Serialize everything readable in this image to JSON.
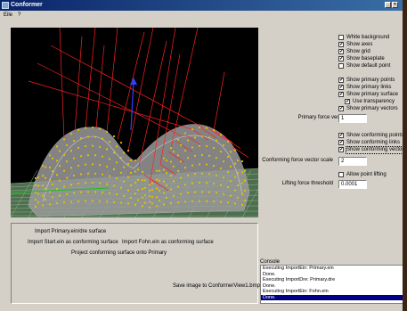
{
  "window": {
    "title": "Conformer"
  },
  "menu": {
    "items": [
      "Eile",
      "?"
    ]
  },
  "options": {
    "checkboxes": [
      {
        "label": "White background",
        "checked": false
      },
      {
        "label": "Show axes",
        "checked": true
      },
      {
        "label": "Show grid",
        "checked": true
      },
      {
        "label": "Show baseplate",
        "checked": true
      },
      {
        "label": "Show default point",
        "checked": false
      },
      {
        "label": "Show primary points",
        "checked": true
      },
      {
        "label": "Show primary links",
        "checked": true
      },
      {
        "label": "Show primary surface",
        "checked": true
      },
      {
        "label": "Use transparency",
        "checked": true
      },
      {
        "label": "Show primary vectors",
        "checked": true
      },
      {
        "label": "Show conforming points",
        "checked": true
      },
      {
        "label": "Show conforming links",
        "checked": true
      },
      {
        "label": "Show conforming vectors",
        "checked": true
      },
      {
        "label": "Allow point lifting",
        "checked": false
      }
    ],
    "primary_force_label": "Primary force vector scale",
    "primary_force_value": "1",
    "conforming_force_label": "Conforming force vector scale",
    "conforming_force_value": "2",
    "lifting_force_label": "Lifting force threshold",
    "lifting_force_value": "0.0001"
  },
  "commands": {
    "import_primary": "Import Primary.ein/dre surface",
    "import_start": "Import Start.ein as conforming surface",
    "import_fohn": "Import Fohn.ein as conforming surface",
    "project": "Project conforming surface onto Primary",
    "save_image": "Save image to ConformerView1.bmp"
  },
  "console": {
    "label": "Console",
    "lines": [
      "Executing ImportEin: Primary.ein",
      "Done.",
      "Executing ImportDre: Primary.dre",
      "Done.",
      "Executing ImportEin: Fohn.ein",
      "Done."
    ]
  },
  "colors": {
    "titlebar": "#0a246a",
    "window_bg": "#d4d0c8",
    "viewport_bg": "#000000",
    "vectors": "#ff2020",
    "points": "#e8c000",
    "grid": "#6a9a6a",
    "console_highlight": "#000080"
  }
}
